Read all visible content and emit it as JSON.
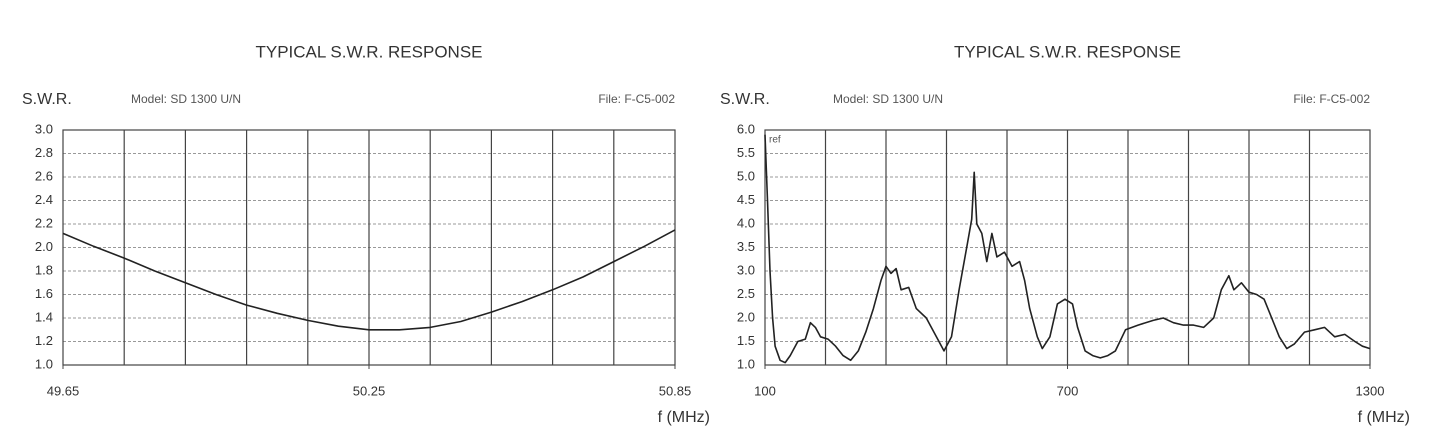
{
  "chart_data": [
    {
      "type": "line",
      "title": "TYPICAL S.W.R. RESPONSE",
      "ylabel": "S.W.R.",
      "model": "Model: SD 1300 U/N",
      "file": "File: F-C5-002",
      "xlabel": "f (MHz)",
      "x": [
        49.65,
        49.71,
        49.77,
        49.83,
        49.89,
        49.95,
        50.01,
        50.07,
        50.13,
        50.19,
        50.25,
        50.31,
        50.37,
        50.43,
        50.49,
        50.55,
        50.61,
        50.67,
        50.73,
        50.79,
        50.85
      ],
      "values": [
        2.12,
        2.01,
        1.91,
        1.8,
        1.7,
        1.6,
        1.51,
        1.44,
        1.38,
        1.33,
        1.3,
        1.3,
        1.32,
        1.37,
        1.45,
        1.54,
        1.64,
        1.75,
        1.88,
        2.01,
        2.15
      ],
      "color": "#222222",
      "xlim": [
        49.65,
        50.85
      ],
      "xticks": [
        49.65,
        50.25,
        50.85
      ],
      "xgrid": [
        49.77,
        49.89,
        50.01,
        50.13,
        50.25,
        50.37,
        50.49,
        50.61,
        50.73
      ],
      "ylim": [
        1.0,
        3.0
      ],
      "yticks": [
        {
          "value": 1.0,
          "label": "1.0"
        },
        1.2,
        1.4,
        1.6,
        1.8,
        {
          "value": 2.0,
          "label": "2.0"
        },
        2.2,
        2.4,
        2.6,
        2.8,
        {
          "value": 3.0,
          "label": "3.0"
        }
      ],
      "grid": true
    },
    {
      "type": "line",
      "title": "TYPICAL S.W.R. RESPONSE",
      "ylabel": "S.W.R.",
      "model": "Model: SD 1300 U/N",
      "file": "File: F-C5-002",
      "xlabel": "f (MHz)",
      "annotation": "ref",
      "x": [
        100,
        105,
        110,
        115,
        120,
        130,
        140,
        150,
        165,
        180,
        190,
        200,
        210,
        225,
        240,
        255,
        270,
        285,
        300,
        315,
        330,
        340,
        350,
        360,
        370,
        385,
        400,
        420,
        440,
        455,
        470,
        485,
        500,
        510,
        515,
        520,
        530,
        540,
        550,
        560,
        575,
        590,
        605,
        615,
        625,
        640,
        650,
        665,
        680,
        695,
        710,
        720,
        735,
        750,
        765,
        780,
        795,
        815,
        840,
        870,
        890,
        910,
        930,
        950,
        970,
        990,
        1005,
        1020,
        1030,
        1045,
        1060,
        1075,
        1090,
        1105,
        1120,
        1135,
        1150,
        1170,
        1190,
        1210,
        1230,
        1250,
        1270,
        1285,
        1300
      ],
      "values": [
        5.9,
        4.5,
        3.0,
        2.0,
        1.4,
        1.1,
        1.05,
        1.2,
        1.5,
        1.55,
        1.9,
        1.8,
        1.6,
        1.55,
        1.4,
        1.2,
        1.1,
        1.3,
        1.7,
        2.2,
        2.8,
        3.1,
        2.95,
        3.05,
        2.6,
        2.65,
        2.2,
        2.0,
        1.6,
        1.3,
        1.6,
        2.6,
        3.5,
        4.1,
        5.1,
        4.0,
        3.8,
        3.2,
        3.8,
        3.3,
        3.4,
        3.1,
        3.2,
        2.8,
        2.2,
        1.6,
        1.35,
        1.6,
        2.3,
        2.4,
        2.3,
        1.8,
        1.3,
        1.2,
        1.15,
        1.2,
        1.3,
        1.75,
        1.85,
        1.95,
        2.0,
        1.9,
        1.85,
        1.85,
        1.8,
        2.0,
        2.6,
        2.9,
        2.6,
        2.75,
        2.55,
        2.5,
        2.4,
        2.0,
        1.6,
        1.35,
        1.45,
        1.7,
        1.75,
        1.8,
        1.6,
        1.65,
        1.5,
        1.4,
        1.35
      ],
      "color": "#222222",
      "xlim": [
        100,
        1300
      ],
      "xticks": [
        100,
        700,
        1300
      ],
      "xgrid": [
        220,
        340,
        460,
        580,
        700,
        820,
        940,
        1060,
        1180
      ],
      "ylim": [
        1.0,
        6.0
      ],
      "yticks": [
        {
          "value": 1.0,
          "label": "1.0"
        },
        1.5,
        {
          "value": 2.0,
          "label": "2.0"
        },
        2.5,
        {
          "value": 3.0,
          "label": "3.0"
        },
        3.5,
        {
          "value": 4.0,
          "label": "4.0"
        },
        4.5,
        {
          "value": 5.0,
          "label": "5.0"
        },
        5.5,
        {
          "value": 6.0,
          "label": "6.0"
        }
      ],
      "grid": true
    }
  ]
}
